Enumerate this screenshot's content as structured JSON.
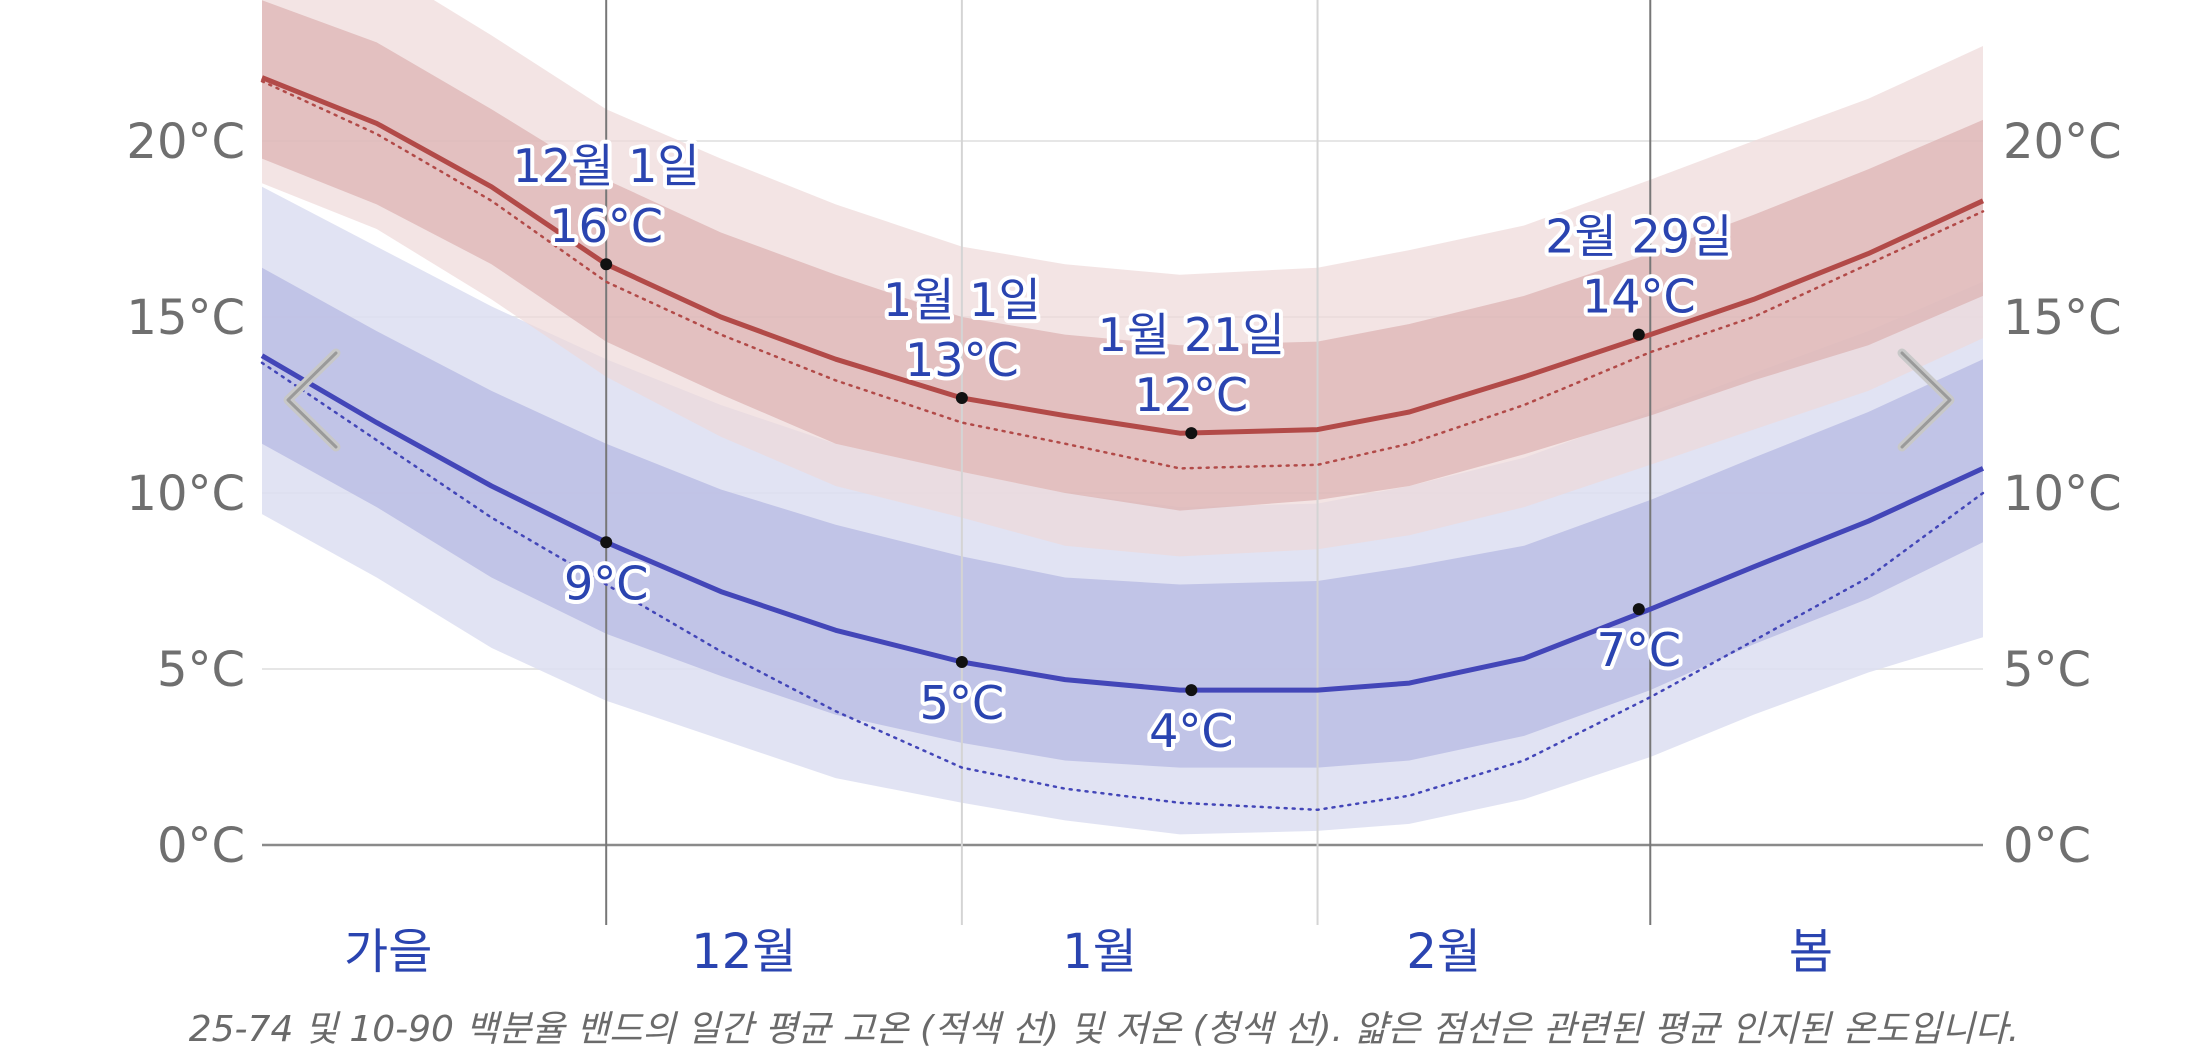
{
  "caption": "25-74 및 10-90 백분율 밴드의 일간 평균 고온 (적색 선) 및 저온 (청색 선). 얇은 점선은 관련된 평균 인지된 온도입니다.",
  "nav": {
    "prev_icon": "chevron-left-icon",
    "next_icon": "chevron-right-icon"
  },
  "colors": {
    "high_line": "#b24a48",
    "high_band_inner": "#dcb0b0",
    "high_band_outer": "#eed8d8",
    "low_line": "#4346b8",
    "low_band_inner": "#b9bce4",
    "low_band_outer": "#dcdef1",
    "annotation_text": "#2a44b0",
    "tick_text": "#6f6f6f"
  },
  "chart_data": {
    "type": "line",
    "title": "",
    "xlabel": "",
    "ylabel": "",
    "ylim": [
      -2,
      24
    ],
    "y_ticks": [
      "0°C",
      "5°C",
      "10°C",
      "15°C",
      "20°C"
    ],
    "y_tick_values": [
      0,
      5,
      10,
      15,
      20
    ],
    "y_axis_sides": [
      "left",
      "right"
    ],
    "grid": true,
    "x_domain_days": [
      "11월 1일",
      "3월 31일"
    ],
    "month_labels": [
      {
        "label": "가을",
        "day": 11
      },
      {
        "label": "12월",
        "day": 42
      },
      {
        "label": "1월",
        "day": 73
      },
      {
        "label": "2월",
        "day": 103
      },
      {
        "label": "봄",
        "day": 135
      }
    ],
    "boundary_lines": [
      {
        "day": 30,
        "style": "dark"
      },
      {
        "day": 61,
        "style": "light"
      },
      {
        "day": 92,
        "style": "light"
      },
      {
        "day": 121,
        "style": "dark"
      }
    ],
    "x": [
      0,
      10,
      20,
      30,
      40,
      50,
      61,
      70,
      80,
      92,
      100,
      110,
      121,
      130,
      140,
      150
    ],
    "series": [
      {
        "role": "high_mean",
        "values": [
          21.8,
          20.5,
          18.7,
          16.5,
          15.0,
          13.8,
          12.7,
          12.2,
          11.7,
          11.8,
          12.3,
          13.3,
          14.5,
          15.5,
          16.8,
          18.3
        ]
      },
      {
        "role": "high_p25",
        "values": [
          19.5,
          18.2,
          16.5,
          14.3,
          12.8,
          11.4,
          10.6,
          10.0,
          9.5,
          9.8,
          10.2,
          11.1,
          12.2,
          13.2,
          14.2,
          15.6
        ]
      },
      {
        "role": "high_p75",
        "values": [
          24.0,
          22.8,
          20.9,
          18.9,
          17.4,
          16.2,
          15.0,
          14.5,
          14.2,
          14.3,
          14.8,
          15.6,
          16.8,
          17.9,
          19.2,
          20.6
        ]
      },
      {
        "role": "high_p10",
        "values": [
          18.8,
          17.5,
          15.5,
          13.3,
          11.6,
          10.2,
          9.3,
          8.5,
          8.2,
          8.4,
          8.8,
          9.6,
          10.8,
          11.8,
          12.9,
          14.4
        ]
      },
      {
        "role": "high_p90",
        "values": [
          26.0,
          25.0,
          23.0,
          20.9,
          19.5,
          18.2,
          17.0,
          16.5,
          16.2,
          16.4,
          16.9,
          17.6,
          18.9,
          20.0,
          21.2,
          22.7
        ]
      },
      {
        "role": "high_feels",
        "values": [
          21.7,
          20.2,
          18.3,
          16.0,
          14.5,
          13.2,
          12.0,
          11.4,
          10.7,
          10.8,
          11.4,
          12.5,
          14.0,
          15.0,
          16.5,
          18.0
        ]
      },
      {
        "role": "low_mean",
        "values": [
          13.9,
          12.0,
          10.2,
          8.6,
          7.2,
          6.1,
          5.2,
          4.7,
          4.4,
          4.4,
          4.6,
          5.3,
          6.7,
          7.9,
          9.2,
          10.7
        ]
      },
      {
        "role": "low_p25",
        "values": [
          11.4,
          9.6,
          7.6,
          6.0,
          4.8,
          3.7,
          2.9,
          2.4,
          2.2,
          2.2,
          2.4,
          3.1,
          4.4,
          5.7,
          7.0,
          8.6
        ]
      },
      {
        "role": "low_p75",
        "values": [
          16.4,
          14.6,
          12.9,
          11.4,
          10.1,
          9.1,
          8.2,
          7.6,
          7.4,
          7.5,
          7.9,
          8.5,
          9.8,
          11.0,
          12.3,
          13.8
        ]
      },
      {
        "role": "low_p10",
        "values": [
          9.4,
          7.6,
          5.6,
          4.1,
          3.0,
          1.9,
          1.2,
          0.7,
          0.3,
          0.4,
          0.6,
          1.3,
          2.5,
          3.7,
          4.9,
          5.9
        ]
      },
      {
        "role": "low_p90",
        "values": [
          18.7,
          17.0,
          15.3,
          13.8,
          12.5,
          11.4,
          10.6,
          10.0,
          9.6,
          9.7,
          10.2,
          11.0,
          12.3,
          13.4,
          14.6,
          16.0
        ]
      },
      {
        "role": "low_feels",
        "values": [
          13.7,
          11.5,
          9.3,
          7.4,
          5.5,
          3.8,
          2.2,
          1.6,
          1.2,
          1.0,
          1.4,
          2.4,
          4.2,
          5.8,
          7.6,
          10.0
        ]
      }
    ],
    "annotations": [
      {
        "series": "high",
        "day": 30,
        "value": 16.5,
        "date": "12월 1일",
        "temp": "16°C",
        "placement": "above"
      },
      {
        "series": "high",
        "day": 61,
        "value": 12.7,
        "date": "1월 1일",
        "temp": "13°C",
        "placement": "above"
      },
      {
        "series": "high",
        "day": 81,
        "value": 11.7,
        "date": "1월 21일",
        "temp": "12°C",
        "placement": "above"
      },
      {
        "series": "high",
        "day": 120,
        "value": 14.5,
        "date": "2월 29일",
        "temp": "14°C",
        "placement": "above"
      },
      {
        "series": "low",
        "day": 30,
        "value": 8.6,
        "date": "",
        "temp": "9°C",
        "placement": "below"
      },
      {
        "series": "low",
        "day": 61,
        "value": 5.2,
        "date": "",
        "temp": "5°C",
        "placement": "below"
      },
      {
        "series": "low",
        "day": 81,
        "value": 4.4,
        "date": "",
        "temp": "4°C",
        "placement": "below"
      },
      {
        "series": "low",
        "day": 120,
        "value": 6.7,
        "date": "",
        "temp": "7°C",
        "placement": "below"
      }
    ]
  }
}
